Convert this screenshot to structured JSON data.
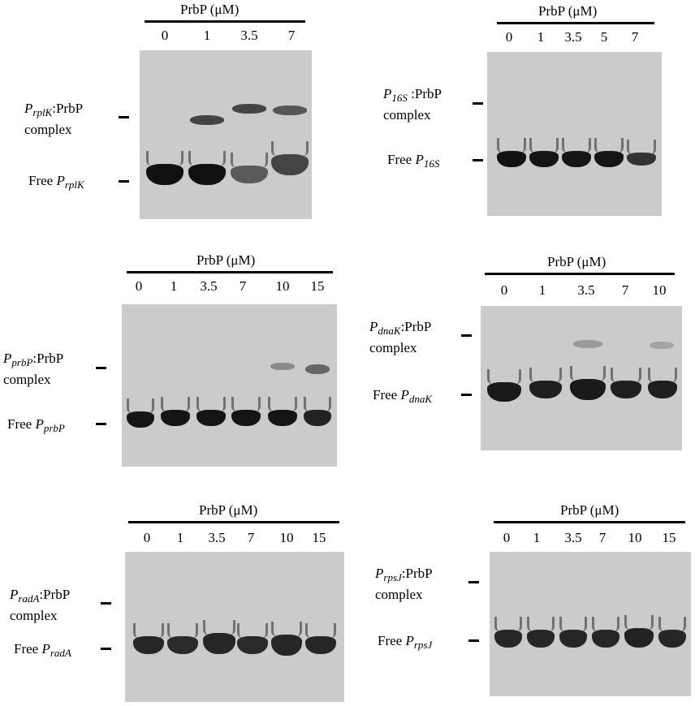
{
  "panels": [
    {
      "id": "rplk",
      "header": "PrbP (μM)",
      "lanes": [
        "0",
        "1",
        "3.5",
        "7"
      ],
      "promoter": "P",
      "promoter_sub": "rplK",
      "complex_suffix": ":PrbP",
      "complex_word": "complex",
      "free_word": "Free ",
      "free_sub": "rplK"
    },
    {
      "id": "16s",
      "header": "PrbP (μM)",
      "lanes": [
        "0",
        "1",
        "3.5",
        "5",
        "7"
      ],
      "promoter": "P",
      "promoter_sub": "16S",
      "complex_suffix": " :PrbP",
      "complex_word": "complex",
      "free_word": "Free ",
      "free_sub": "16S"
    },
    {
      "id": "prbp",
      "header": "PrbP (μM)",
      "lanes": [
        "0",
        "1",
        "3.5",
        "7",
        "10",
        "15"
      ],
      "promoter": "P",
      "promoter_sub": "prbP",
      "complex_suffix": ":PrbP",
      "complex_word": "complex",
      "free_word": "Free ",
      "free_sub": "prbP"
    },
    {
      "id": "dnak",
      "header": "PrbP (μM)",
      "lanes": [
        "0",
        "1",
        "3.5",
        "7",
        "10"
      ],
      "promoter": "P",
      "promoter_sub": "dnaK",
      "complex_suffix": ":PrbP",
      "complex_word": "complex",
      "free_word": "Free ",
      "free_sub": "dnaK"
    },
    {
      "id": "rada",
      "header": "PrbP (μM)",
      "lanes": [
        "0",
        "1",
        "3.5",
        "7",
        "10",
        "15"
      ],
      "promoter": "P",
      "promoter_sub": "radA",
      "complex_suffix": ":PrbP",
      "complex_word": "complex",
      "free_word": "Free ",
      "free_sub": "radA"
    },
    {
      "id": "rpsj",
      "header": "PrbP (μM)",
      "lanes": [
        "0",
        "1",
        "3.5",
        "7",
        "10",
        "15"
      ],
      "promoter": "P",
      "promoter_sub": "rpsJ",
      "complex_suffix": ":PrbP",
      "complex_word": "complex",
      "free_word": "Free ",
      "free_sub": "rpsJ"
    }
  ]
}
